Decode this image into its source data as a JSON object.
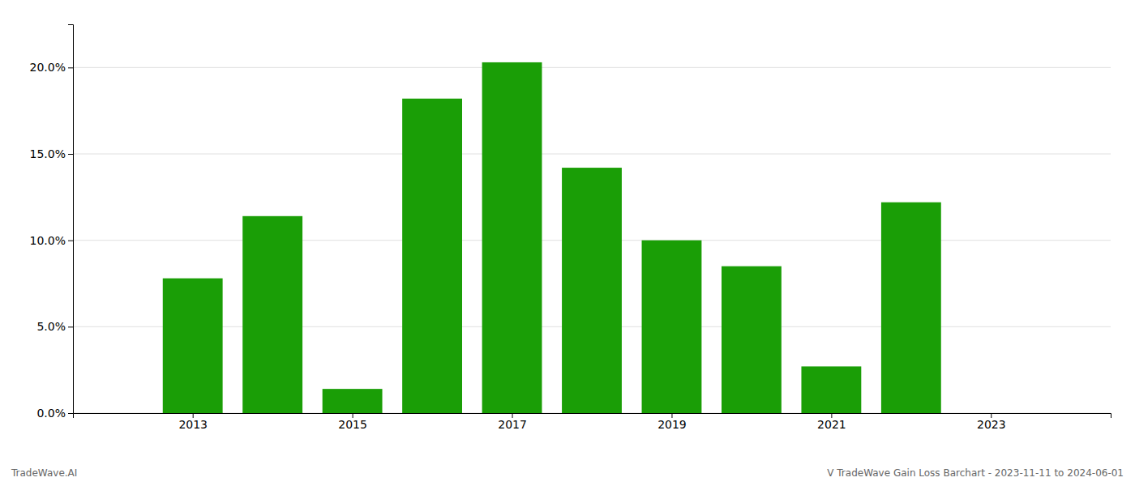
{
  "chart_data": {
    "type": "bar",
    "x": [
      2013,
      2014,
      2015,
      2016,
      2017,
      2018,
      2019,
      2020,
      2021,
      2022
    ],
    "values": [
      0.078,
      0.114,
      0.014,
      0.182,
      0.203,
      0.142,
      0.1,
      0.085,
      0.027,
      0.122
    ],
    "color": "#1a9e06",
    "xlim": [
      2011.5,
      2024.5
    ],
    "xticks": [
      2013,
      2015,
      2017,
      2019,
      2021,
      2023
    ],
    "ylim": [
      0,
      0.225
    ],
    "yticks": [
      {
        "value": 0.0,
        "label": "0.0%"
      },
      {
        "value": 0.05,
        "label": "5.0%"
      },
      {
        "value": 0.1,
        "label": "10.0%"
      },
      {
        "value": 0.15,
        "label": "15.0%"
      },
      {
        "value": 0.2,
        "label": "20.0%"
      }
    ],
    "grid": true,
    "annotations": [
      "TradeWave.AI",
      "V TradeWave Gain Loss Barchart - 2023-11-11 to 2024-06-01"
    ]
  }
}
